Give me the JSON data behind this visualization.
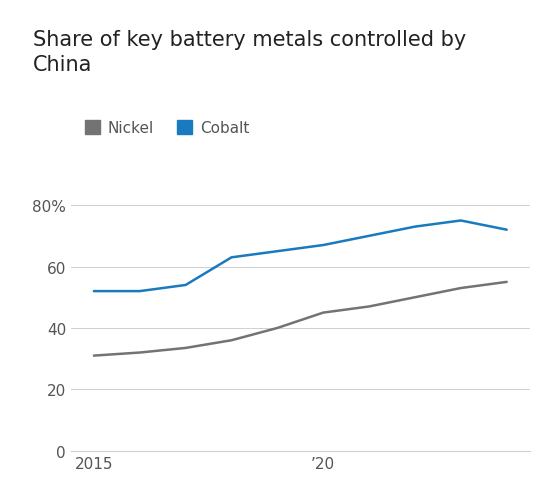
{
  "title": "Share of key battery metals controlled by\nChina",
  "legend_labels": [
    "Nickel",
    "Cobalt"
  ],
  "nickel_color": "#737373",
  "cobalt_color": "#1a7abf",
  "background_color": "#ffffff",
  "years": [
    2015,
    2016,
    2017,
    2018,
    2019,
    2020,
    2021,
    2022,
    2023,
    2024
  ],
  "nickel_values": [
    31,
    32,
    33.5,
    36,
    40,
    45,
    47,
    50,
    53,
    55
  ],
  "cobalt_values": [
    52,
    52,
    54,
    63,
    65,
    67,
    70,
    73,
    75,
    72
  ],
  "ylim": [
    0,
    85
  ],
  "yticks": [
    0,
    20,
    40,
    60,
    80
  ],
  "ytick_labels": [
    "0",
    "20",
    "40",
    "60",
    "80%"
  ],
  "xlim": [
    2014.5,
    2024.5
  ],
  "xticks": [
    2015,
    2020
  ],
  "xtick_labels": [
    "2015",
    "’20"
  ],
  "line_width": 1.8,
  "title_fontsize": 15,
  "tick_fontsize": 11,
  "legend_fontsize": 11,
  "grid_color": "#d0d0d0",
  "tick_color": "#555555"
}
